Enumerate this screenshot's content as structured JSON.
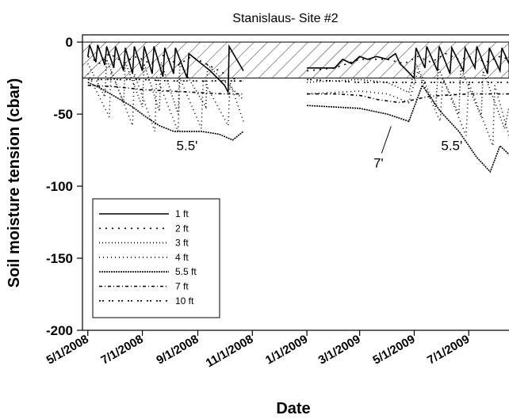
{
  "chart_data": {
    "type": "line",
    "title": "Stanislaus- Site #2",
    "xlabel": "Date",
    "ylabel": "Soil moisture tension (cbar)",
    "xlim": [
      "2008-04-25",
      "2009-08-15"
    ],
    "ylim": [
      -200,
      5
    ],
    "yticks": [
      0,
      -50,
      -100,
      -150,
      -200
    ],
    "ytick_labels": [
      "0",
      "-50",
      "-100",
      "-150",
      "-200"
    ],
    "xticks": [
      "2008-05-01",
      "2008-07-01",
      "2008-09-01",
      "2008-11-01",
      "2009-01-01",
      "2009-03-01",
      "2009-05-01",
      "2009-07-01"
    ],
    "xtick_labels": [
      "5/1/2008",
      "7/1/2008",
      "9/1/2008",
      "11/1/2008",
      "1/1/2009",
      "3/1/2009",
      "5/1/2009",
      "7/1/2009"
    ],
    "grid": false,
    "legend_position": "lower-left",
    "shaded_band": {
      "y_from": 0,
      "y_to": -25,
      "pattern": "diagonal-hatch"
    },
    "annotations": [
      {
        "text": "5.5'",
        "x": "2008-08-20",
        "y": -75
      },
      {
        "text": "7'",
        "x": "2009-03-22",
        "y": -87
      },
      {
        "text": "5.5'",
        "x": "2009-06-12",
        "y": -75
      }
    ],
    "series": [
      {
        "name": "1 ft",
        "dash": "solid",
        "x": [
          "2008-05-01",
          "2008-05-03",
          "2008-05-10",
          "2008-05-12",
          "2008-05-20",
          "2008-05-22",
          "2008-05-30",
          "2008-06-01",
          "2008-06-10",
          "2008-06-12",
          "2008-06-20",
          "2008-06-22",
          "2008-07-01",
          "2008-07-03",
          "2008-07-12",
          "2008-07-14",
          "2008-07-24",
          "2008-07-26",
          "2008-08-05",
          "2008-08-07",
          "2008-08-20",
          "2008-08-22",
          "2008-09-15",
          "2008-10-01",
          "2008-10-05",
          "2008-10-06",
          "2008-10-22",
          "2009-01-01",
          "2009-02-01",
          "2009-02-10",
          "2009-02-20",
          "2009-03-01",
          "2009-03-10",
          "2009-03-20",
          "2009-04-01",
          "2009-04-10",
          "2009-04-15",
          "2009-04-20",
          "2009-05-01",
          "2009-05-03",
          "2009-05-13",
          "2009-05-15",
          "2009-05-27",
          "2009-05-29",
          "2009-06-10",
          "2009-06-12",
          "2009-06-25",
          "2009-06-27",
          "2009-07-08",
          "2009-07-10",
          "2009-07-22",
          "2009-07-24",
          "2009-08-05",
          "2009-08-07",
          "2009-08-15"
        ],
        "y": [
          -10,
          -2,
          -14,
          -2,
          -16,
          -3,
          -18,
          -3,
          -20,
          -4,
          -22,
          -3,
          -20,
          -3,
          -22,
          -3,
          -24,
          -4,
          -22,
          -4,
          -25,
          -8,
          -20,
          -30,
          -35,
          -3,
          -20,
          -18,
          -18,
          -12,
          -15,
          -10,
          -12,
          -10,
          -12,
          -8,
          -15,
          -18,
          -25,
          -4,
          -18,
          -3,
          -20,
          -3,
          -22,
          -4,
          -20,
          -4,
          -18,
          -3,
          -22,
          -4,
          -20,
          -4,
          -15
        ]
      },
      {
        "name": "2 ft",
        "dash": "2 6",
        "x": [
          "2008-05-01",
          "2008-05-15",
          "2008-05-25",
          "2008-06-10",
          "2008-06-25",
          "2008-07-10",
          "2008-07-25",
          "2008-08-10",
          "2008-08-25",
          "2008-09-10",
          "2008-09-25",
          "2008-10-10",
          "2008-10-22",
          "2009-01-01",
          "2009-02-01",
          "2009-03-01",
          "2009-04-01",
          "2009-04-20",
          "2009-05-05",
          "2009-05-20",
          "2009-06-05",
          "2009-06-20",
          "2009-07-05",
          "2009-07-20",
          "2009-08-05",
          "2009-08-15"
        ],
        "y": [
          -10,
          -15,
          -8,
          -14,
          -10,
          -15,
          -9,
          -16,
          -10,
          -15,
          -20,
          -25,
          -28,
          -20,
          -18,
          -12,
          -12,
          -15,
          -10,
          -14,
          -8,
          -12,
          -10,
          -14,
          -10,
          -12
        ]
      },
      {
        "name": "3 ft",
        "dash": "1 3",
        "x": [
          "2008-05-01",
          "2008-05-20",
          "2008-05-22",
          "2008-06-10",
          "2008-06-12",
          "2008-07-01",
          "2008-07-03",
          "2008-07-20",
          "2008-07-22",
          "2008-08-10",
          "2008-08-12",
          "2008-09-10",
          "2008-09-12",
          "2008-10-22",
          "2009-01-01",
          "2009-03-01",
          "2009-04-01",
          "2009-04-25",
          "2009-05-03",
          "2009-05-25",
          "2009-05-28",
          "2009-06-20",
          "2009-06-22",
          "2009-07-15",
          "2009-07-17",
          "2009-08-10",
          "2009-08-15"
        ],
        "y": [
          -15,
          -38,
          -12,
          -42,
          -14,
          -45,
          -15,
          -48,
          -14,
          -50,
          -15,
          -45,
          -16,
          -40,
          -28,
          -26,
          -28,
          -35,
          -15,
          -45,
          -18,
          -50,
          -18,
          -52,
          -20,
          -60,
          -45
        ]
      },
      {
        "name": "4 ft",
        "dash": "1 4",
        "x": [
          "2008-05-01",
          "2008-05-25",
          "2008-05-27",
          "2008-06-20",
          "2008-06-22",
          "2008-07-15",
          "2008-07-17",
          "2008-08-10",
          "2008-08-12",
          "2008-09-05",
          "2008-09-07",
          "2008-10-05",
          "2008-10-07",
          "2008-10-22",
          "2009-01-01",
          "2009-03-01",
          "2009-04-01",
          "2009-04-25",
          "2009-05-05",
          "2009-05-30",
          "2009-06-02",
          "2009-06-28",
          "2009-07-01",
          "2009-07-28",
          "2009-07-30",
          "2009-08-15"
        ],
        "y": [
          -22,
          -52,
          -20,
          -58,
          -22,
          -62,
          -24,
          -62,
          -25,
          -60,
          -26,
          -58,
          -28,
          -55,
          -36,
          -34,
          -36,
          -42,
          -20,
          -55,
          -25,
          -65,
          -28,
          -72,
          -30,
          -65
        ]
      },
      {
        "name": "5.5 ft",
        "dash": "2 1",
        "x": [
          "2008-05-01",
          "2008-05-15",
          "2008-06-01",
          "2008-06-20",
          "2008-07-05",
          "2008-07-20",
          "2008-08-05",
          "2008-08-20",
          "2008-09-05",
          "2008-09-25",
          "2008-10-10",
          "2008-10-22",
          "2009-01-01",
          "2009-03-01",
          "2009-04-01",
          "2009-04-25",
          "2009-05-10",
          "2009-05-30",
          "2009-06-20",
          "2009-07-10",
          "2009-07-25",
          "2009-08-05",
          "2009-08-15"
        ],
        "y": [
          -28,
          -32,
          -38,
          -45,
          -52,
          -58,
          -62,
          -62,
          -62,
          -64,
          -68,
          -62,
          -44,
          -46,
          -50,
          -55,
          -30,
          -48,
          -62,
          -80,
          -90,
          -72,
          -78
        ]
      },
      {
        "name": "7 ft",
        "dash": "4 3 1 3",
        "x": [
          "2008-05-01",
          "2008-06-01",
          "2008-07-01",
          "2008-08-01",
          "2008-09-01",
          "2008-10-01",
          "2008-10-22",
          "2009-01-01",
          "2009-02-01",
          "2009-03-01",
          "2009-03-22",
          "2009-04-15",
          "2009-05-01",
          "2009-05-15",
          "2009-06-01",
          "2009-07-01",
          "2009-08-15"
        ],
        "y": [
          -30,
          -31,
          -33,
          -34,
          -35,
          -36,
          -36,
          -36,
          -36,
          -37,
          -40,
          -42,
          -40,
          -38,
          -37,
          -36,
          -36
        ]
      },
      {
        "name": "10 ft",
        "dash": "2 2 2 6",
        "x": [
          "2008-05-01",
          "2008-06-01",
          "2008-07-01",
          "2008-08-01",
          "2008-09-01",
          "2008-10-01",
          "2008-10-22",
          "2009-01-01",
          "2009-02-01",
          "2009-03-01",
          "2009-04-01",
          "2009-05-01",
          "2009-06-01",
          "2009-07-01",
          "2009-08-15"
        ],
        "y": [
          -26,
          -26,
          -26,
          -27,
          -27,
          -27,
          -27,
          -26,
          -27,
          -28,
          -28,
          -28,
          -28,
          -28,
          -28
        ]
      }
    ]
  }
}
